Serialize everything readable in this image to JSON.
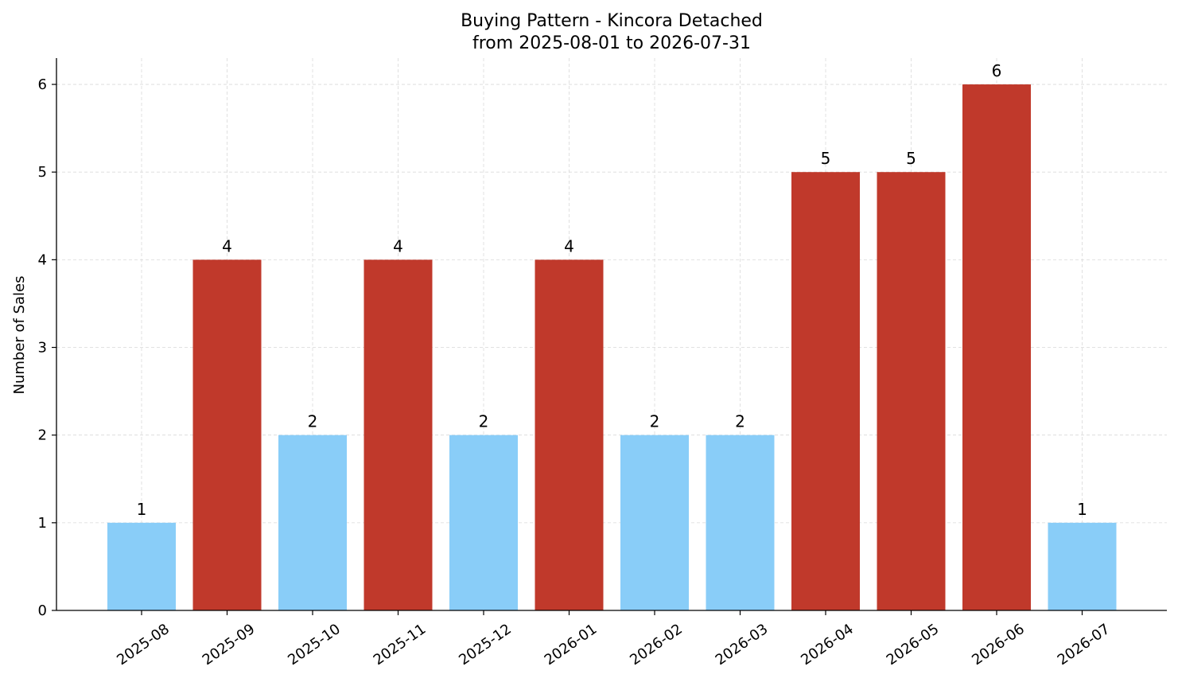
{
  "chart_data": {
    "type": "bar",
    "title": "Buying Pattern - Kincora Detached",
    "subtitle": "from 2025-08-01 to 2026-07-31",
    "xlabel": "",
    "ylabel": "Number of Sales",
    "ylim": [
      0,
      6.3
    ],
    "yticks": [
      0,
      1,
      2,
      3,
      4,
      5,
      6
    ],
    "categories": [
      "2025-08",
      "2025-09",
      "2025-10",
      "2025-11",
      "2025-12",
      "2026-01",
      "2026-02",
      "2026-03",
      "2026-04",
      "2026-05",
      "2026-06",
      "2026-07"
    ],
    "values": [
      1,
      4,
      2,
      4,
      2,
      4,
      2,
      2,
      5,
      5,
      6,
      1
    ],
    "grid": true,
    "legend": "none",
    "colors": {
      "low": "#89CDF8",
      "high": "#C0392B",
      "axis": "#000000",
      "grid": "#D9D9D9"
    },
    "color_rule": "bars with 4 or more sales use the high color, others use the low color"
  }
}
